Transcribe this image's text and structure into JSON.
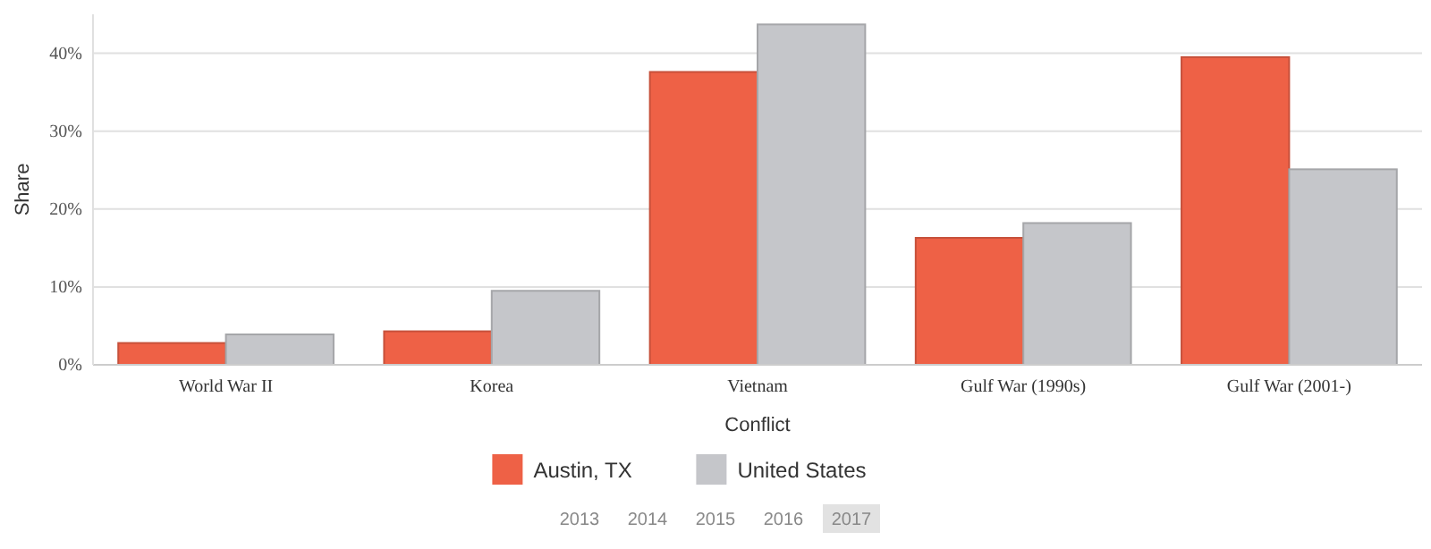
{
  "chart_data": {
    "type": "bar",
    "xlabel": "Conflict",
    "ylabel": "Share",
    "categories": [
      "World War II",
      "Korea",
      "Vietnam",
      "Gulf War (1990s)",
      "Gulf War (2001-)"
    ],
    "series": [
      {
        "name": "Austin, TX",
        "color": "#ee6146",
        "values": [
          2.8,
          4.3,
          37.6,
          16.3,
          39.5
        ]
      },
      {
        "name": "United States",
        "color": "#c5c6ca",
        "values": [
          3.9,
          9.5,
          43.7,
          18.2,
          25.1
        ]
      }
    ],
    "ylim": [
      0,
      45
    ],
    "yticks": [
      {
        "value": 0,
        "label": "0%"
      },
      {
        "value": 10,
        "label": "10%"
      },
      {
        "value": 20,
        "label": "20%"
      },
      {
        "value": 30,
        "label": "30%"
      },
      {
        "value": 40,
        "label": "40%"
      }
    ],
    "grid": "y",
    "legend": "bottom",
    "annotations": [
      "2013",
      "2014",
      "2015",
      "2016",
      "2017"
    ]
  }
}
